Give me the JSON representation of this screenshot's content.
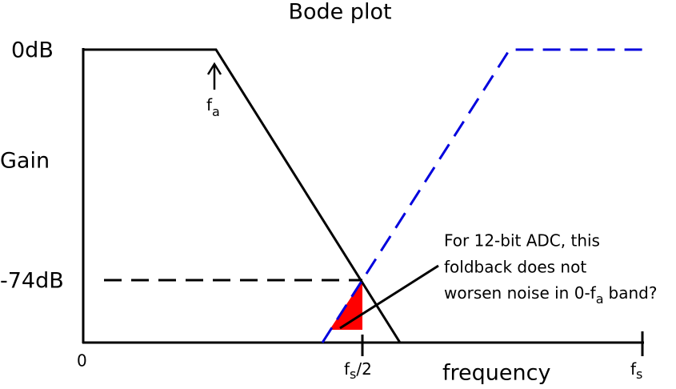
{
  "title": "Bode plot",
  "y_axis": {
    "label": "Gain",
    "ticks": [
      "0dB",
      "-74dB"
    ]
  },
  "x_axis": {
    "label": "frequency",
    "origin": "0",
    "half_sample": {
      "base": "f",
      "sub": "s",
      "suffix": "/2"
    },
    "sample": {
      "base": "f",
      "sub": "s"
    }
  },
  "corner_marker": {
    "base": "f",
    "sub": "a"
  },
  "annotation": {
    "lines": [
      "For 12-bit ADC, this",
      "foldback does not"
    ],
    "last_line": {
      "text": "worsen noise in 0-f",
      "sub": "a",
      "suffix": "band?"
    }
  }
}
